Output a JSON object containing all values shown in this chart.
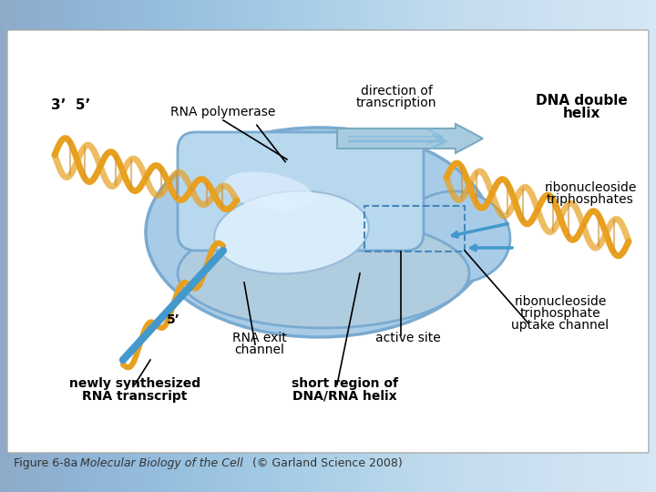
{
  "figure_caption": "Figure 6-8a",
  "caption_italic": "Molecular Biology of the Cell",
  "caption_suffix": " (© Garland Science 2008)",
  "bg_color_top": "#b8d8f0",
  "bg_color_bottom": "#deeef8",
  "border_color": "#cccccc",
  "main_diagram_bg": "#ffffff",
  "labels": {
    "prime35": "3’  5’",
    "rna_polymerase": "RNA polymerase",
    "direction_of": "direction of",
    "transcription": "transcription",
    "dna_double": "DNA double",
    "helix": "helix",
    "ribonucleoside_tri": "ribonucleoside\ntriphosphates",
    "rna_exit": "RNA exit\nchannel",
    "active_site": "active site",
    "ribonucleoside_up": "ribonucleoside\ntriphosphate\nuptake channel",
    "newly_synthesized": "newly synthesized\nRNA transcript",
    "short_region": "short region of\nDNA/RNA helix",
    "five_prime_bottom": "5’"
  },
  "label_color": "#000000",
  "label_fontsize": 10,
  "bold_labels": [
    "newly_synthesized",
    "short_region"
  ],
  "orange_color": "#E8A020",
  "blue_color": "#7AB8E8",
  "light_blue": "#AED4F0",
  "dashed_box_color": "#7AB8E8"
}
